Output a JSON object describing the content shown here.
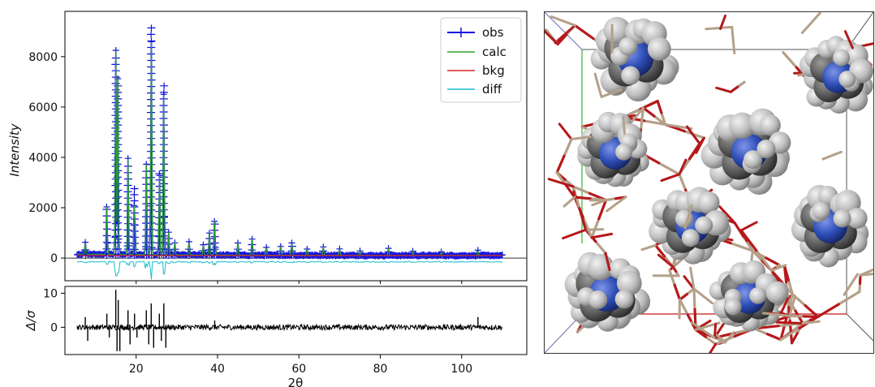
{
  "chart_data": [
    {
      "type": "line",
      "panel": "main",
      "xlabel": "",
      "ylabel": "Intensity",
      "xlim": [
        2.5,
        116
      ],
      "ylim": [
        -900,
        9800
      ],
      "yticks": [
        0,
        2000,
        4000,
        6000,
        8000
      ],
      "ytick_labels": [
        "0",
        "2000",
        "4000",
        "6000",
        "8000"
      ],
      "xticks": [
        20,
        40,
        60,
        80,
        100
      ],
      "legend": {
        "placement": "top-right",
        "entries": [
          "obs",
          "calc",
          "bkg",
          "diff"
        ]
      },
      "colors": {
        "obs": "#1010e0",
        "calc": "#2ca02c",
        "bkg": "#d62728",
        "diff": "#17becf"
      },
      "background_level": 100,
      "diff_offset": -150,
      "peaks": [
        {
          "x": 7.5,
          "y": 550
        },
        {
          "x": 12.8,
          "y": 2200
        },
        {
          "x": 15.0,
          "y": 8200
        },
        {
          "x": 15.5,
          "y": 7100
        },
        {
          "x": 18.0,
          "y": 3900
        },
        {
          "x": 19.6,
          "y": 3000
        },
        {
          "x": 22.5,
          "y": 3700
        },
        {
          "x": 23.7,
          "y": 9400
        },
        {
          "x": 25.7,
          "y": 3600
        },
        {
          "x": 26.8,
          "y": 7100
        },
        {
          "x": 28.0,
          "y": 1000
        },
        {
          "x": 29.5,
          "y": 600
        },
        {
          "x": 33.0,
          "y": 600
        },
        {
          "x": 36.5,
          "y": 500
        },
        {
          "x": 38.0,
          "y": 1000
        },
        {
          "x": 39.3,
          "y": 1600
        },
        {
          "x": 45.0,
          "y": 600
        },
        {
          "x": 48.5,
          "y": 750
        },
        {
          "x": 52.0,
          "y": 400
        },
        {
          "x": 55.5,
          "y": 450
        },
        {
          "x": 58.3,
          "y": 650
        },
        {
          "x": 62.0,
          "y": 350
        },
        {
          "x": 66.0,
          "y": 450
        },
        {
          "x": 70.0,
          "y": 350
        },
        {
          "x": 75.0,
          "y": 300
        },
        {
          "x": 82.0,
          "y": 400
        },
        {
          "x": 88.0,
          "y": 260
        },
        {
          "x": 95.0,
          "y": 250
        },
        {
          "x": 104.0,
          "y": 300
        }
      ]
    },
    {
      "type": "line",
      "panel": "residual",
      "xlabel": "2θ",
      "ylabel": "Δ/σ",
      "xlim": [
        2.5,
        116
      ],
      "ylim": [
        -8,
        12
      ],
      "yticks": [
        0,
        10
      ],
      "ytick_labels": [
        "0",
        "10"
      ],
      "xticks": [
        20,
        40,
        60,
        80,
        100
      ],
      "xtick_labels": [
        "20",
        "40",
        "60",
        "80",
        "100"
      ],
      "color": "#000000",
      "spikes": [
        {
          "x": 7.5,
          "y": 3
        },
        {
          "x": 8.1,
          "y": -4
        },
        {
          "x": 12.8,
          "y": 4
        },
        {
          "x": 13.4,
          "y": -3
        },
        {
          "x": 15.0,
          "y": 11
        },
        {
          "x": 15.3,
          "y": -7
        },
        {
          "x": 15.6,
          "y": 8
        },
        {
          "x": 16.0,
          "y": -7
        },
        {
          "x": 18.0,
          "y": 5
        },
        {
          "x": 18.5,
          "y": -5
        },
        {
          "x": 19.6,
          "y": 4
        },
        {
          "x": 20.2,
          "y": -3
        },
        {
          "x": 22.5,
          "y": 5
        },
        {
          "x": 23.1,
          "y": -5
        },
        {
          "x": 23.7,
          "y": 7
        },
        {
          "x": 24.3,
          "y": -6
        },
        {
          "x": 25.7,
          "y": 4
        },
        {
          "x": 26.2,
          "y": -4
        },
        {
          "x": 26.8,
          "y": 7
        },
        {
          "x": 27.3,
          "y": -6
        },
        {
          "x": 39.3,
          "y": 2
        },
        {
          "x": 104.0,
          "y": 3
        }
      ]
    }
  ]
}
